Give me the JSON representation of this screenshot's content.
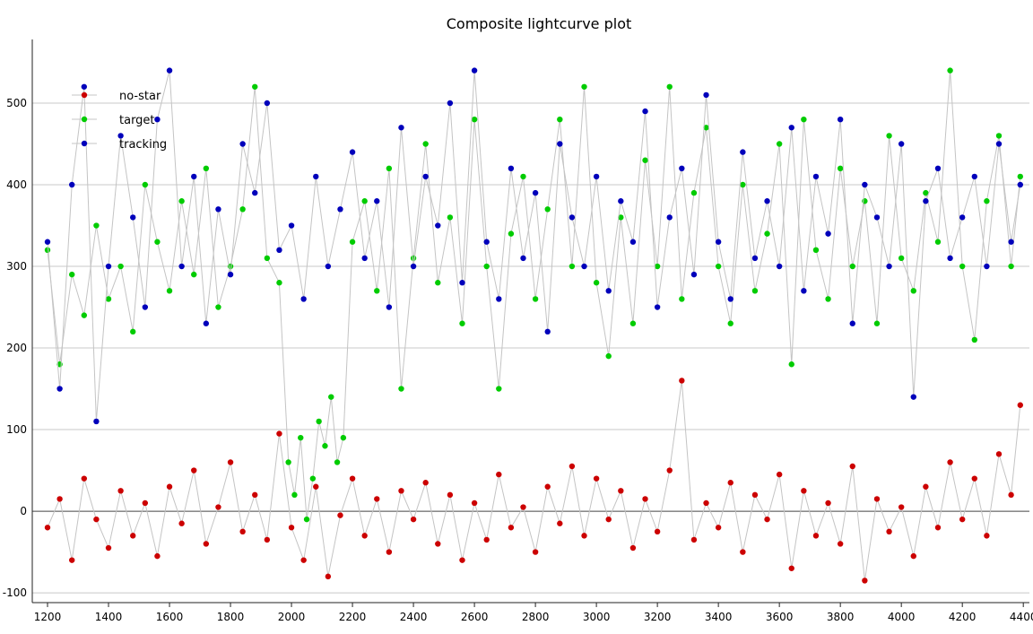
{
  "chart_data": {
    "type": "scatter",
    "title": "Composite lightcurve plot",
    "xlabel": "",
    "ylabel": "",
    "xlim": [
      1150,
      4420
    ],
    "ylim": [
      -112,
      578
    ],
    "x_ticks": [
      1200,
      1400,
      1600,
      1800,
      2000,
      2200,
      2400,
      2600,
      2800,
      3000,
      3200,
      3400,
      3600,
      3800,
      4000,
      4200,
      4400
    ],
    "y_ticks": [
      -100,
      0,
      100,
      200,
      300,
      400,
      500
    ],
    "grid": "horizontal",
    "legend_position": "top-left",
    "series": [
      {
        "name": "no-star",
        "color": "#cc0000",
        "x": [
          1200,
          1240,
          1280,
          1320,
          1360,
          1400,
          1440,
          1480,
          1520,
          1560,
          1600,
          1640,
          1680,
          1720,
          1760,
          1800,
          1840,
          1880,
          1920,
          1960,
          2000,
          2040,
          2080,
          2120,
          2160,
          2200,
          2240,
          2280,
          2320,
          2360,
          2400,
          2440,
          2480,
          2520,
          2560,
          2600,
          2640,
          2680,
          2720,
          2760,
          2800,
          2840,
          2880,
          2920,
          2960,
          3000,
          3040,
          3080,
          3120,
          3160,
          3200,
          3240,
          3280,
          3320,
          3360,
          3400,
          3440,
          3480,
          3520,
          3560,
          3600,
          3640,
          3680,
          3720,
          3760,
          3800,
          3840,
          3880,
          3920,
          3960,
          4000,
          4040,
          4080,
          4120,
          4160,
          4200,
          4240,
          4280,
          4320,
          4360,
          4390
        ],
        "y": [
          -20,
          15,
          -60,
          40,
          -10,
          -45,
          25,
          -30,
          10,
          -55,
          30,
          -15,
          50,
          -40,
          5,
          60,
          -25,
          20,
          -35,
          95,
          -20,
          -60,
          30,
          -80,
          -5,
          40,
          -30,
          15,
          -50,
          25,
          -10,
          35,
          -40,
          20,
          -60,
          10,
          -35,
          45,
          -20,
          5,
          -50,
          30,
          -15,
          55,
          -30,
          40,
          -10,
          25,
          -45,
          15,
          -25,
          50,
          160,
          -35,
          10,
          -20,
          35,
          -50,
          20,
          -10,
          45,
          -70,
          25,
          -30,
          10,
          -40,
          55,
          -85,
          15,
          -25,
          5,
          -55,
          30,
          -20,
          60,
          -10,
          40,
          -30,
          70,
          20,
          130
        ]
      },
      {
        "name": "target",
        "color": "#00cc00",
        "x": [
          1200,
          1240,
          1280,
          1320,
          1360,
          1400,
          1440,
          1480,
          1520,
          1560,
          1600,
          1640,
          1680,
          1720,
          1760,
          1800,
          1840,
          1880,
          1920,
          1960,
          1990,
          2010,
          2030,
          2050,
          2070,
          2090,
          2110,
          2130,
          2150,
          2170,
          2200,
          2240,
          2280,
          2320,
          2360,
          2400,
          2440,
          2480,
          2520,
          2560,
          2600,
          2640,
          2680,
          2720,
          2760,
          2800,
          2840,
          2880,
          2920,
          2960,
          3000,
          3040,
          3080,
          3120,
          3160,
          3200,
          3240,
          3280,
          3320,
          3360,
          3400,
          3440,
          3480,
          3520,
          3560,
          3600,
          3640,
          3680,
          3720,
          3760,
          3800,
          3840,
          3880,
          3920,
          3960,
          4000,
          4040,
          4080,
          4120,
          4160,
          4200,
          4240,
          4280,
          4320,
          4360,
          4390
        ],
        "y": [
          320,
          180,
          290,
          240,
          350,
          260,
          300,
          220,
          400,
          330,
          270,
          380,
          290,
          420,
          250,
          300,
          370,
          520,
          310,
          280,
          60,
          20,
          90,
          -10,
          40,
          110,
          80,
          140,
          60,
          90,
          330,
          380,
          270,
          420,
          150,
          310,
          450,
          280,
          360,
          230,
          480,
          300,
          150,
          340,
          410,
          260,
          370,
          480,
          300,
          520,
          280,
          190,
          360,
          230,
          430,
          300,
          520,
          260,
          390,
          470,
          300,
          230,
          400,
          270,
          340,
          450,
          180,
          480,
          320,
          260,
          420,
          300,
          380,
          230,
          460,
          310,
          270,
          390,
          330,
          540,
          300,
          210,
          380,
          460,
          300,
          410
        ]
      },
      {
        "name": "tracking",
        "color": "#0000bb",
        "x": [
          1200,
          1240,
          1280,
          1320,
          1360,
          1400,
          1440,
          1480,
          1520,
          1560,
          1600,
          1640,
          1680,
          1720,
          1760,
          1800,
          1840,
          1880,
          1920,
          1960,
          2000,
          2040,
          2080,
          2120,
          2160,
          2200,
          2240,
          2280,
          2320,
          2360,
          2400,
          2440,
          2480,
          2520,
          2560,
          2600,
          2640,
          2680,
          2720,
          2760,
          2800,
          2840,
          2880,
          2920,
          2960,
          3000,
          3040,
          3080,
          3120,
          3160,
          3200,
          3240,
          3280,
          3320,
          3360,
          3400,
          3440,
          3480,
          3520,
          3560,
          3600,
          3640,
          3680,
          3720,
          3760,
          3800,
          3840,
          3880,
          3920,
          3960,
          4000,
          4040,
          4080,
          4120,
          4160,
          4200,
          4240,
          4280,
          4320,
          4360,
          4390
        ],
        "y": [
          330,
          150,
          400,
          520,
          110,
          300,
          460,
          360,
          250,
          480,
          540,
          300,
          410,
          230,
          370,
          290,
          450,
          390,
          500,
          320,
          350,
          260,
          410,
          300,
          370,
          440,
          310,
          380,
          250,
          470,
          300,
          410,
          350,
          500,
          280,
          540,
          330,
          260,
          420,
          310,
          390,
          220,
          450,
          360,
          300,
          410,
          270,
          380,
          330,
          490,
          250,
          360,
          420,
          290,
          510,
          330,
          260,
          440,
          310,
          380,
          300,
          470,
          270,
          410,
          340,
          480,
          230,
          400,
          360,
          300,
          450,
          140,
          380,
          420,
          310,
          360,
          410,
          300,
          450,
          330,
          400
        ]
      }
    ]
  }
}
